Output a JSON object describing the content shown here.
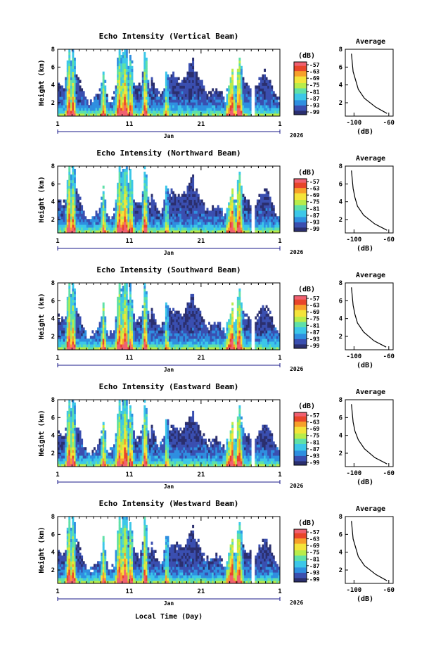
{
  "chart_data": [
    {
      "type": "heatmap",
      "title": "Echo Intensity (Vertical Beam)",
      "ylabel": "Height (km)",
      "x_ticks": [
        "1",
        "11",
        "21",
        "1"
      ],
      "month": "Jan",
      "year": "2026",
      "xlim_day": [
        1,
        32
      ],
      "ylim_km": [
        0.5,
        8
      ],
      "y_ticks": [
        2,
        4,
        6,
        8
      ],
      "colorbar": {
        "unit": "(dB)",
        "ticks": [
          -57,
          -63,
          -69,
          -75,
          -81,
          -87,
          -93,
          -99
        ]
      },
      "average": {
        "title": "Average",
        "xlabel": "(dB)",
        "xticks": [
          -100,
          -60
        ],
        "height_km": [
          0.8,
          1.5,
          2.5,
          3.5,
          4.5,
          5.5,
          6.5,
          7.5
        ],
        "db": [
          -62,
          -75,
          -88,
          -95,
          -98,
          -101,
          -102,
          -103
        ]
      }
    },
    {
      "type": "heatmap",
      "title": "Echo Intensity (Northward Beam)",
      "ylabel": "Height (km)",
      "x_ticks": [
        "1",
        "11",
        "21",
        "1"
      ],
      "month": "Jan",
      "year": "2026",
      "xlim_day": [
        1,
        32
      ],
      "ylim_km": [
        0.5,
        8
      ],
      "y_ticks": [
        2,
        4,
        6,
        8
      ],
      "colorbar": {
        "unit": "(dB)",
        "ticks": [
          -57,
          -63,
          -69,
          -75,
          -81,
          -87,
          -93,
          -99
        ]
      },
      "average": {
        "title": "Average",
        "xlabel": "(dB)",
        "xticks": [
          -100,
          -60
        ],
        "height_km": [
          0.8,
          1.5,
          2.5,
          3.5,
          4.5,
          5.5,
          6.5,
          7.5
        ],
        "db": [
          -62,
          -76,
          -89,
          -96,
          -99,
          -101,
          -102,
          -103
        ]
      }
    },
    {
      "type": "heatmap",
      "title": "Echo Intensity (Southward Beam)",
      "ylabel": "Height (km)",
      "x_ticks": [
        "1",
        "11",
        "21",
        "1"
      ],
      "month": "Jan",
      "year": "2026",
      "xlim_day": [
        1,
        32
      ],
      "ylim_km": [
        0.5,
        8
      ],
      "y_ticks": [
        2,
        4,
        6,
        8
      ],
      "colorbar": {
        "unit": "(dB)",
        "ticks": [
          -57,
          -63,
          -69,
          -75,
          -81,
          -87,
          -93,
          -99
        ]
      },
      "average": {
        "title": "Average",
        "xlabel": "(dB)",
        "xticks": [
          -100,
          -60
        ],
        "height_km": [
          0.8,
          1.5,
          2.5,
          3.5,
          4.5,
          5.5,
          6.5,
          7.5
        ],
        "db": [
          -63,
          -77,
          -89,
          -96,
          -99,
          -101,
          -102,
          -103
        ]
      }
    },
    {
      "type": "heatmap",
      "title": "Echo Intensity (Eastward Beam)",
      "ylabel": "Height (km)",
      "x_ticks": [
        "1",
        "11",
        "21",
        "1"
      ],
      "month": "Jan",
      "year": "2026",
      "xlim_day": [
        1,
        32
      ],
      "ylim_km": [
        0.5,
        8
      ],
      "y_ticks": [
        2,
        4,
        6,
        8
      ],
      "colorbar": {
        "unit": "(dB)",
        "ticks": [
          -57,
          -63,
          -69,
          -75,
          -81,
          -87,
          -93,
          -99
        ]
      },
      "average": {
        "title": "Average",
        "xlabel": "(dB)",
        "xticks": [
          -100,
          -60
        ],
        "height_km": [
          0.8,
          1.5,
          2.5,
          3.5,
          4.5,
          5.5,
          6.5,
          7.5
        ],
        "db": [
          -62,
          -76,
          -88,
          -95,
          -99,
          -101,
          -102,
          -103
        ]
      }
    },
    {
      "type": "heatmap",
      "title": "Echo Intensity (Westward Beam)",
      "ylabel": "Height (km)",
      "x_ticks": [
        "1",
        "11",
        "21",
        "1"
      ],
      "month": "Jan",
      "year": "2026",
      "xlim_day": [
        1,
        32
      ],
      "ylim_km": [
        0.5,
        8
      ],
      "y_ticks": [
        2,
        4,
        6,
        8
      ],
      "colorbar": {
        "unit": "(dB)",
        "ticks": [
          -57,
          -63,
          -69,
          -75,
          -81,
          -87,
          -93,
          -99
        ]
      },
      "average": {
        "title": "Average",
        "xlabel": "(dB)",
        "xticks": [
          -100,
          -60
        ],
        "height_km": [
          0.8,
          1.5,
          2.5,
          3.5,
          4.5,
          5.5,
          6.5,
          7.5
        ],
        "db": [
          -62,
          -75,
          -88,
          -95,
          -98,
          -101,
          -102,
          -103
        ]
      }
    }
  ],
  "footer": {
    "xlabel": "Local Time (Day)"
  },
  "colors": {
    "scale": [
      "#2b2f6e",
      "#3a4fb0",
      "#2f8fe0",
      "#3cc7e8",
      "#5fe0a8",
      "#b8ec4a",
      "#f4e43a",
      "#f7a02a",
      "#e8452a",
      "#f06070"
    ],
    "axis": "#000000",
    "time_bar": "#1a1a8a"
  }
}
